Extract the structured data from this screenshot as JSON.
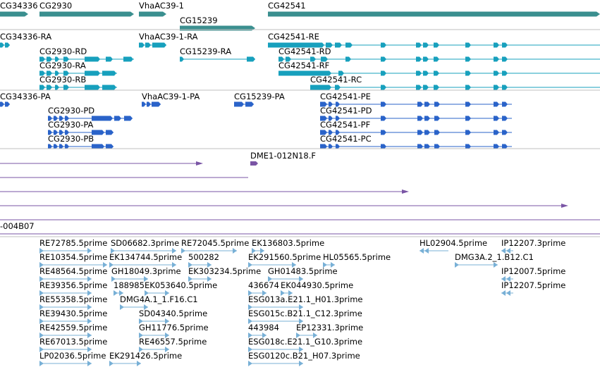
{
  "colors": {
    "gene": "#3a8f8f",
    "rna": "#17a0bd",
    "protein": "#2a63c9",
    "clone": "#7a55a5",
    "est": "#78b0d6",
    "separator": "#bfbfbf"
  },
  "genes": [
    {
      "id": "CG34336"
    },
    {
      "id": "CG2930"
    },
    {
      "id": "VhaAC39-1"
    },
    {
      "id": "CG15239"
    },
    {
      "id": "CG42541"
    }
  ],
  "transcripts": [
    {
      "id": "CG34336-RA"
    },
    {
      "id": "VhaAC39-1-RA"
    },
    {
      "id": "CG42541-RE"
    },
    {
      "id": "CG2930-RD"
    },
    {
      "id": "CG15239-RA"
    },
    {
      "id": "CG42541-RD"
    },
    {
      "id": "CG2930-RA"
    },
    {
      "id": "CG42541-RF"
    },
    {
      "id": "CG2930-RB"
    },
    {
      "id": "CG42541-RC"
    }
  ],
  "proteins": [
    {
      "id": "CG34336-PA"
    },
    {
      "id": "VhaAC39-1-PA"
    },
    {
      "id": "CG15239-PA"
    },
    {
      "id": "CG42541-PE"
    },
    {
      "id": "CG2930-PD"
    },
    {
      "id": "CG42541-PD"
    },
    {
      "id": "CG2930-PA"
    },
    {
      "id": "CG42541-PF"
    },
    {
      "id": "CG2930-PB"
    },
    {
      "id": "CG42541-PC"
    }
  ],
  "clones": [
    {
      "id": "DME1-012N18.F"
    },
    {
      "id": "-004B07"
    }
  ],
  "ests": [
    {
      "id": "RE72785.5prime"
    },
    {
      "id": "SD06682.3prime"
    },
    {
      "id": "RE72045.5prime"
    },
    {
      "id": "EK136803.5prime"
    },
    {
      "id": "HL02904.5prime"
    },
    {
      "id": "IP12207.3prime"
    },
    {
      "id": "RE10354.5prime"
    },
    {
      "id": "EK134744.5prime"
    },
    {
      "id": "500282"
    },
    {
      "id": "EK291560.5prime"
    },
    {
      "id": "HL05565.5prime"
    },
    {
      "id": "DMG3A.2_1.B12.C1"
    },
    {
      "id": "RE48564.5prime"
    },
    {
      "id": "GH18049.3prime"
    },
    {
      "id": "EK303234.5prime"
    },
    {
      "id": "GH01483.5prime"
    },
    {
      "id": "IP12007.5prime"
    },
    {
      "id": "RE39356.5prime"
    },
    {
      "id": "188985"
    },
    {
      "id": "EK053640.5prime"
    },
    {
      "id": "436674"
    },
    {
      "id": "EK044930.5prime"
    },
    {
      "id": "IP12207.5prime"
    },
    {
      "id": "RE55358.5prime"
    },
    {
      "id": "DMG4A.1_1.F16.C1"
    },
    {
      "id": "ESG013a.E21.1_H01.3prime"
    },
    {
      "id": "RE39430.5prime"
    },
    {
      "id": "SD04340.5prime"
    },
    {
      "id": "ESG015c.B21.1_C12.3prime"
    },
    {
      "id": "RE42559.5prime"
    },
    {
      "id": "GH11776.5prime"
    },
    {
      "id": "443984"
    },
    {
      "id": "EP12331.3prime"
    },
    {
      "id": "RE67013.5prime"
    },
    {
      "id": "RE46557.5prime"
    },
    {
      "id": "ESG018c.E21.1_G10.3prime"
    },
    {
      "id": "LP02036.5prime"
    },
    {
      "id": "EK291426.5prime"
    },
    {
      "id": "ESG0120c.B21_H07.3prime"
    }
  ]
}
